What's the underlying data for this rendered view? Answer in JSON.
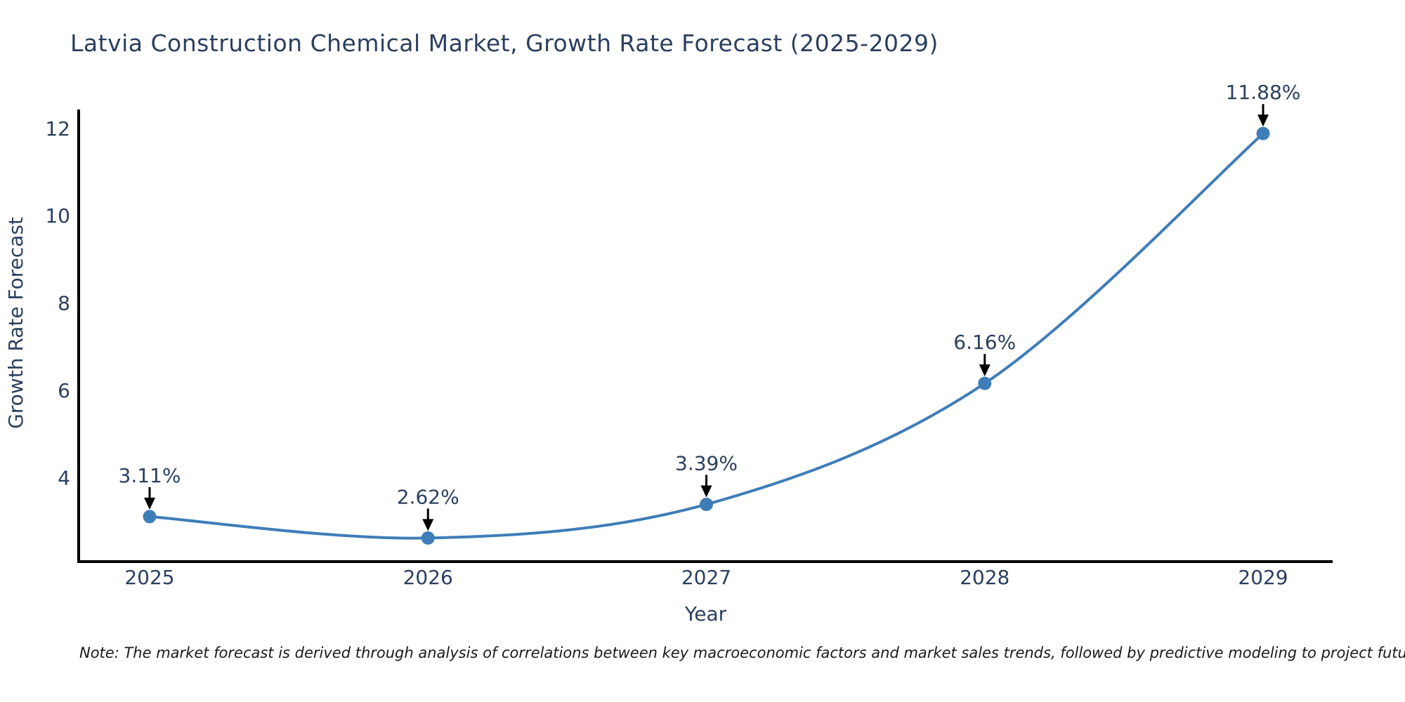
{
  "title": "Latvia Construction Chemical Market, Growth Rate Forecast (2025-2029)",
  "note": "Note: The market forecast is derived through analysis of correlations between key macroeconomic factors and market sales trends, followed by predictive modeling to project future sales",
  "chart_data": {
    "type": "line",
    "title": "Latvia Construction Chemical Market, Growth Rate Forecast (2025-2029)",
    "x": [
      "2025",
      "2026",
      "2027",
      "2028",
      "2029"
    ],
    "series": [
      {
        "name": "Growth Rate Forecast",
        "values": [
          3.11,
          2.62,
          3.39,
          6.16,
          11.88
        ]
      }
    ],
    "point_labels": [
      "3.11%",
      "2.62%",
      "3.39%",
      "6.16%",
      "11.88%"
    ],
    "xlabel": "Year",
    "ylabel": "Growth Rate Forecast",
    "yticks": [
      4,
      6,
      8,
      10,
      12
    ],
    "ylim": [
      2.08,
      12.43
    ],
    "line_shape": "spline",
    "grid": false,
    "legend": "none",
    "colors": {
      "line": "#3e7db8",
      "marker": "#3e7db8",
      "arrow": "#000000",
      "axis": "#000000",
      "text": "#2a3f5f",
      "note_text": "#1a1a1a"
    }
  }
}
